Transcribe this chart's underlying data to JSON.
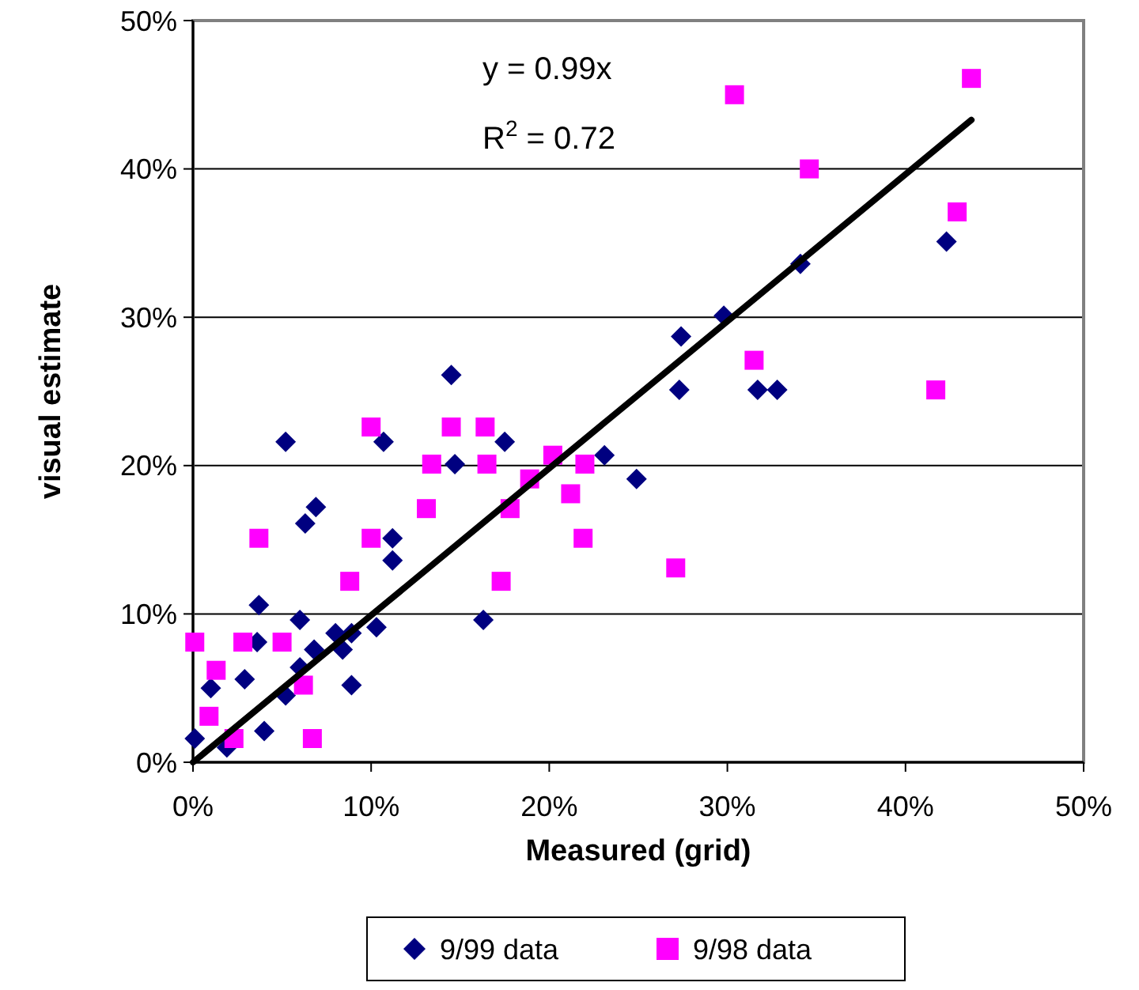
{
  "chart_data": {
    "type": "scatter",
    "xlabel": "Measured (grid)",
    "ylabel": "visual estimate",
    "xlim": [
      0,
      50
    ],
    "ylim": [
      0,
      50
    ],
    "xticks": [
      {
        "value": 0,
        "label": "0%"
      },
      {
        "value": 10,
        "label": "10%"
      },
      {
        "value": 20,
        "label": "20%"
      },
      {
        "value": 30,
        "label": "30%"
      },
      {
        "value": 40,
        "label": "40%"
      },
      {
        "value": 50,
        "label": "50%"
      }
    ],
    "yticks": [
      {
        "value": 0,
        "label": "0%"
      },
      {
        "value": 10,
        "label": "10%"
      },
      {
        "value": 20,
        "label": "20%"
      },
      {
        "value": 30,
        "label": "30%"
      },
      {
        "value": 40,
        "label": "40%"
      },
      {
        "value": 50,
        "label": "50%"
      }
    ],
    "grid": "y",
    "legend": "bottom",
    "annotations": [
      "y = 0.99x",
      "R$^{2}$ = 0.72"
    ],
    "series": [
      {
        "name": "9/99 data",
        "color": "#000080",
        "marker": "diamond",
        "x": [
          14.5,
          5.2,
          10.7,
          14.7,
          6.9,
          6.3,
          11.2,
          11.2,
          3.7,
          6.0,
          3.6,
          8.0,
          8.9,
          8.4,
          6.8,
          10.3,
          6.0,
          2.9,
          1.0,
          5.2,
          8.9,
          4.0,
          0.1,
          1.9,
          16.3,
          17.5,
          23.1,
          24.9,
          27.4,
          27.3,
          29.8,
          34.1,
          42.3,
          31.7,
          32.8
        ],
        "values": [
          26.1,
          21.6,
          21.6,
          20.1,
          17.2,
          16.1,
          15.1,
          13.6,
          10.6,
          9.6,
          8.1,
          8.7,
          8.7,
          7.6,
          7.6,
          9.1,
          6.4,
          5.6,
          5.0,
          4.5,
          5.2,
          2.1,
          1.6,
          1.0,
          9.6,
          21.6,
          20.7,
          19.1,
          28.7,
          25.1,
          30.1,
          33.6,
          35.1,
          25.1,
          25.1
        ]
      },
      {
        "name": "9/98 data",
        "color": "#ff00ff",
        "marker": "square",
        "x": [
          10.0,
          14.5,
          16.4,
          13.4,
          16.5,
          13.1,
          3.7,
          10.0,
          8.8,
          0.1,
          2.8,
          5.0,
          1.3,
          6.2,
          0.9,
          2.3,
          6.7,
          18.9,
          20.2,
          22.0,
          21.2,
          17.8,
          21.9,
          17.3,
          27.1,
          31.5,
          30.4,
          43.7,
          34.6,
          42.9,
          41.7
        ],
        "values": [
          22.6,
          22.6,
          22.6,
          20.1,
          20.1,
          17.1,
          15.1,
          15.1,
          12.2,
          8.1,
          8.1,
          8.1,
          6.2,
          5.2,
          3.1,
          1.6,
          1.6,
          19.1,
          20.7,
          20.1,
          18.1,
          17.1,
          15.1,
          12.2,
          13.1,
          27.1,
          45.0,
          46.1,
          40.0,
          37.1,
          25.1
        ]
      },
      {
        "type": "line",
        "color": "#000000",
        "line_style": "solid",
        "x": [
          0,
          43.7
        ],
        "values": [
          0,
          43.3
        ]
      }
    ]
  }
}
